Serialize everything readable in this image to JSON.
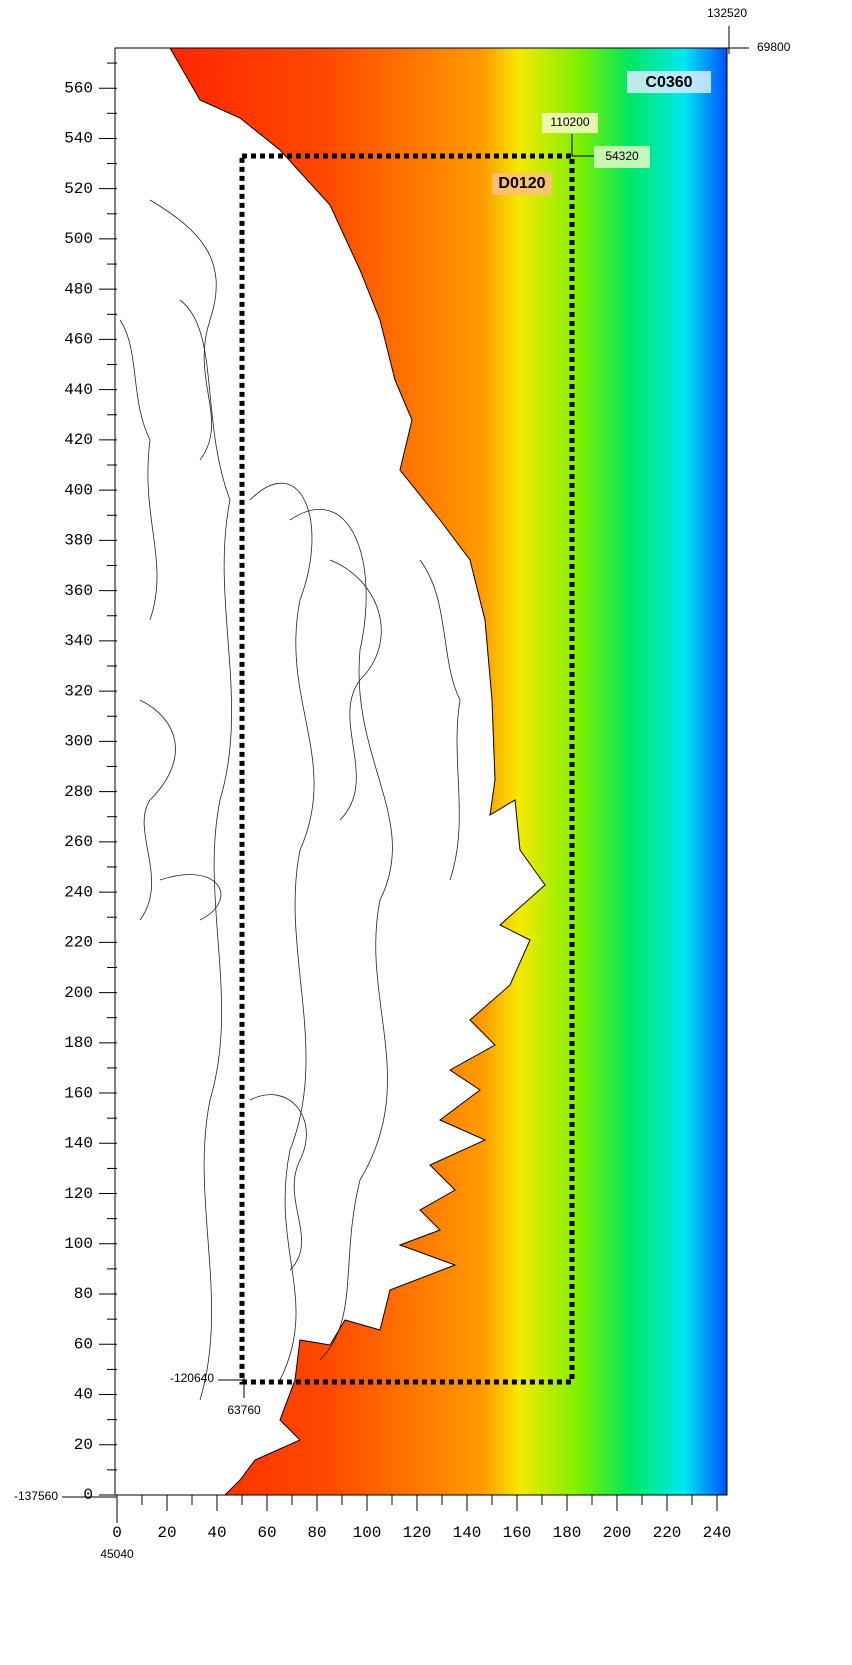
{
  "map": {
    "xlim": [
      0,
      244
    ],
    "ylim": [
      0,
      576
    ],
    "xticks": [
      0,
      20,
      40,
      60,
      80,
      100,
      120,
      140,
      160,
      180,
      200,
      220,
      240
    ],
    "xminor_ticks": [
      10,
      30,
      50,
      70,
      90,
      110,
      130,
      150,
      170,
      190,
      210,
      230
    ],
    "yticks": [
      0,
      20,
      40,
      60,
      80,
      100,
      120,
      140,
      160,
      180,
      200,
      220,
      240,
      260,
      280,
      300,
      320,
      340,
      360,
      380,
      400,
      420,
      440,
      460,
      480,
      500,
      520,
      540,
      560
    ],
    "yminor_ticks": [
      10,
      30,
      50,
      70,
      90,
      110,
      130,
      150,
      170,
      190,
      210,
      230,
      250,
      270,
      290,
      310,
      330,
      350,
      370,
      390,
      410,
      430,
      450,
      470,
      490,
      510,
      530,
      550,
      570
    ],
    "outer_domain": {
      "name": "C0360",
      "top_right_x": 132520,
      "top_right_y": 69800,
      "bottom_left_x": 45040,
      "bottom_left_y": -137560
    },
    "inner_domain": {
      "name": "D0120",
      "xlim": [
        50,
        182
      ],
      "ylim": [
        45,
        533
      ],
      "top_right_x": 110200,
      "top_right_y": 54320,
      "bottom_left_x": 63760,
      "bottom_left_y": -120640
    }
  }
}
